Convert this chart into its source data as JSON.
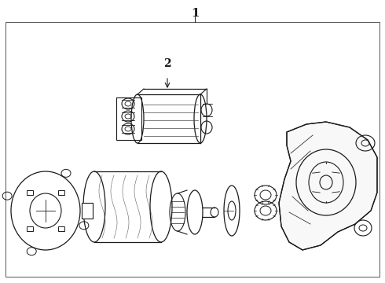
{
  "title": "1",
  "label2": "2",
  "bg_color": "#ffffff",
  "line_color": "#1a1a1a",
  "border_color": "#555555",
  "fig_width": 4.9,
  "fig_height": 3.6,
  "dpi": 100
}
